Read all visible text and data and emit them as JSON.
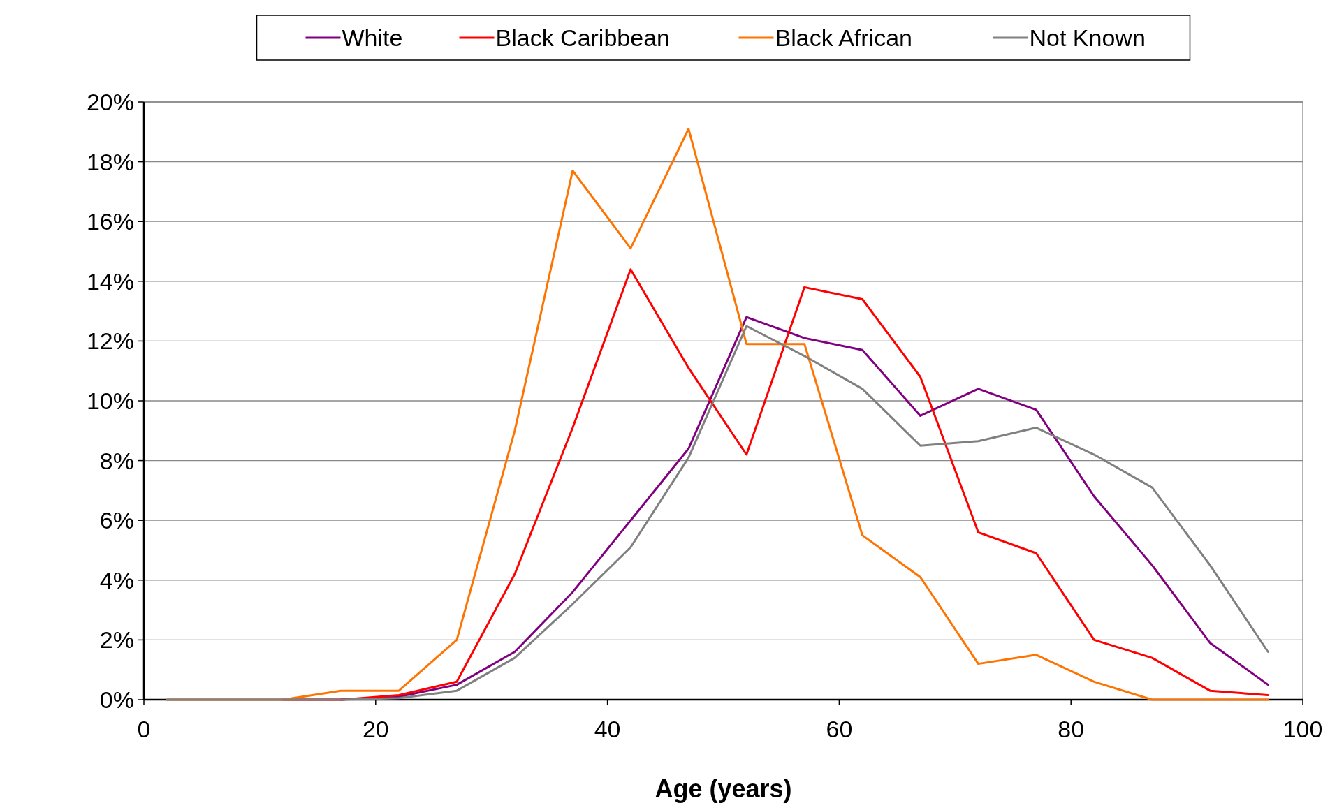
{
  "chart_data": {
    "type": "line",
    "xlabel": "Age (years)",
    "x": [
      2,
      7,
      12,
      17,
      22,
      27,
      32,
      37,
      42,
      47,
      52,
      57,
      62,
      67,
      72,
      77,
      82,
      87,
      92,
      97
    ],
    "series": [
      {
        "name": "White",
        "color": "#800080",
        "values": [
          null,
          null,
          null,
          0,
          0.1,
          0.5,
          1.6,
          3.6,
          6.0,
          8.4,
          12.8,
          12.1,
          11.7,
          9.5,
          10.4,
          9.7,
          6.8,
          4.5,
          1.9,
          0.5
        ]
      },
      {
        "name": "Black Caribbean",
        "color": "#ff0000",
        "values": [
          null,
          null,
          0,
          0,
          0.15,
          0.6,
          4.2,
          9.1,
          14.4,
          11.1,
          8.2,
          13.8,
          13.4,
          10.8,
          5.6,
          4.9,
          2.0,
          1.4,
          0.3,
          0.15
        ]
      },
      {
        "name": "Black African",
        "color": "#ff7400",
        "values": [
          0,
          0,
          0,
          0.3,
          0.3,
          2.0,
          9.0,
          17.7,
          15.1,
          19.1,
          11.9,
          11.9,
          5.5,
          4.1,
          1.2,
          1.5,
          0.6,
          0,
          0,
          0
        ]
      },
      {
        "name": "Not Known",
        "color": "#808080",
        "values": [
          0,
          0,
          0,
          0,
          0.05,
          0.3,
          1.4,
          3.2,
          5.1,
          8.1,
          12.5,
          11.5,
          10.4,
          8.5,
          8.65,
          9.1,
          8.2,
          7.1,
          4.5,
          1.6
        ]
      }
    ],
    "xlim": [
      0,
      100
    ],
    "xticks": [
      0,
      20,
      40,
      60,
      80,
      100
    ],
    "ylim": [
      0,
      20
    ],
    "yticks": [
      {
        "value": 0,
        "label": "0%"
      },
      {
        "value": 2,
        "label": "2%"
      },
      {
        "value": 4,
        "label": "4%"
      },
      {
        "value": 6,
        "label": "6%"
      },
      {
        "value": 8,
        "label": "8%"
      },
      {
        "value": 10,
        "label": "10%"
      },
      {
        "value": 12,
        "label": "12%"
      },
      {
        "value": 14,
        "label": "14%"
      },
      {
        "value": 16,
        "label": "16%"
      },
      {
        "value": 18,
        "label": "18%"
      },
      {
        "value": 20,
        "label": "20%"
      }
    ],
    "grid": "y",
    "legend": "top",
    "marker": "none",
    "line_style": "solid"
  }
}
